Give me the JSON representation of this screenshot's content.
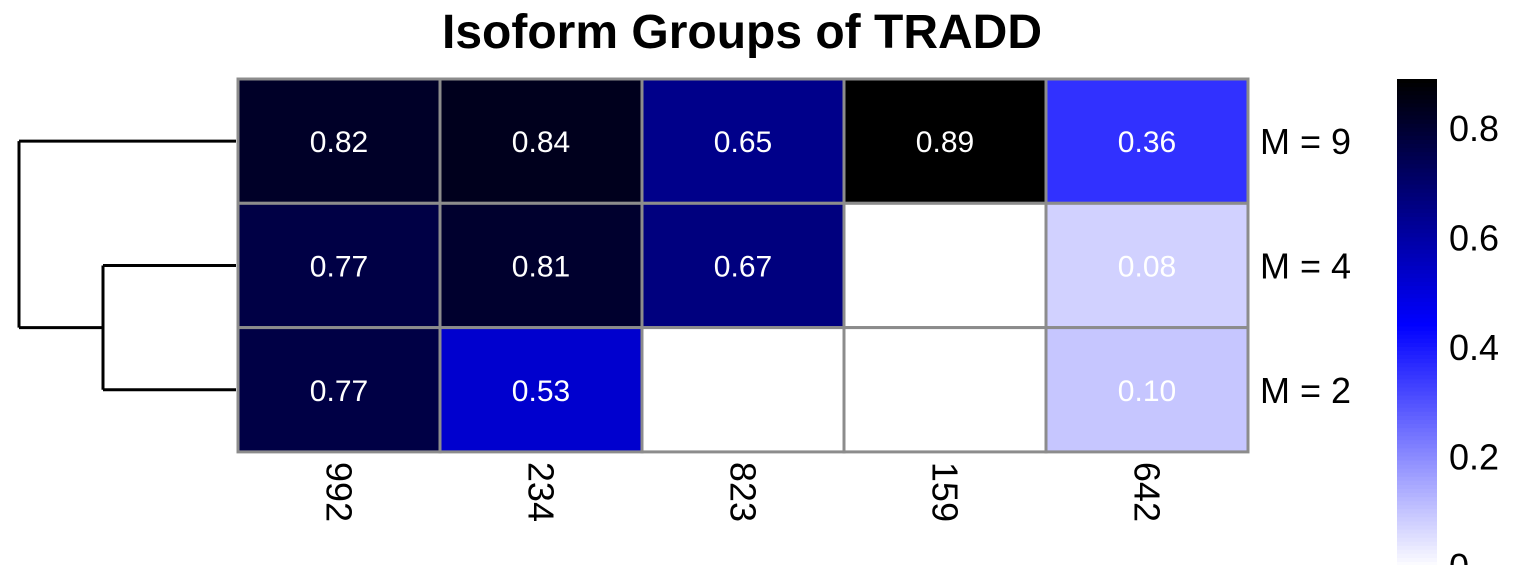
{
  "chart_data": {
    "type": "heatmap",
    "title": "Isoform Groups of TRADD",
    "rows": [
      "M = 9",
      "M = 4",
      "M = 2"
    ],
    "columns": [
      "992",
      "234",
      "823",
      "159",
      "642"
    ],
    "values": [
      [
        0.82,
        0.84,
        0.65,
        0.89,
        0.36
      ],
      [
        0.77,
        0.81,
        0.67,
        null,
        0.08
      ],
      [
        0.77,
        0.53,
        null,
        null,
        0.1
      ]
    ],
    "cell_labels": [
      [
        "0.82",
        "0.84",
        "0.65",
        "0.89",
        "0.36"
      ],
      [
        "0.77",
        "0.81",
        "0.67",
        "",
        "0.08"
      ],
      [
        "0.77",
        "0.53",
        "",
        "",
        "0.10"
      ]
    ],
    "color_scale": {
      "colors": [
        "#ffffff",
        "#0000ff",
        "#000000"
      ],
      "range": [
        0,
        0.89
      ],
      "ticks": [
        "0",
        "0.2",
        "0.4",
        "0.6",
        "0.8"
      ]
    },
    "empty_cell_color": "#ffffff",
    "grid_color": "#8c8c8c",
    "row_dendrogram": true,
    "legend": "right"
  }
}
